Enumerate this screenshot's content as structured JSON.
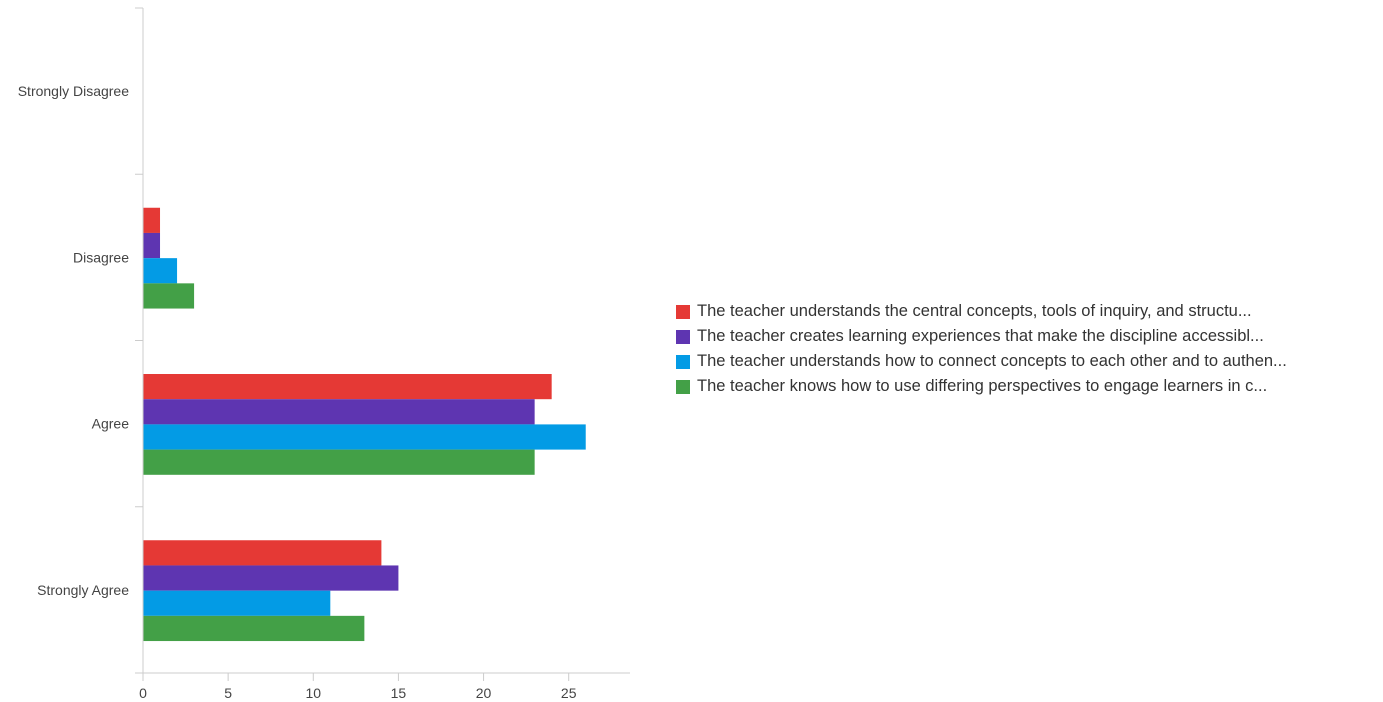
{
  "chart_data": {
    "type": "bar",
    "orientation": "horizontal",
    "categories": [
      "Strongly Disagree",
      "Disagree",
      "Agree",
      "Strongly Agree"
    ],
    "series": [
      {
        "name": "The teacher understands the central concepts, tools of inquiry, and structu...",
        "color": "#e53935",
        "values": [
          0,
          1,
          24,
          14
        ]
      },
      {
        "name": "The teacher creates learning experiences that make the discipline accessibl...",
        "color": "#5e35b1",
        "values": [
          0,
          1,
          23,
          15
        ]
      },
      {
        "name": "The teacher understands how to connect concepts to each other and to authen...",
        "color": "#039be5",
        "values": [
          0,
          2,
          26,
          11
        ]
      },
      {
        "name": "The teacher knows how to use differing perspectives to engage learners in c...",
        "color": "#43a047",
        "values": [
          0,
          3,
          23,
          13
        ]
      }
    ],
    "xticks": [
      0,
      5,
      10,
      15,
      20,
      25
    ],
    "xlim": [
      0,
      28.6
    ],
    "title": "",
    "xlabel": "",
    "ylabel": "",
    "grid": false,
    "legend_position": "right"
  }
}
